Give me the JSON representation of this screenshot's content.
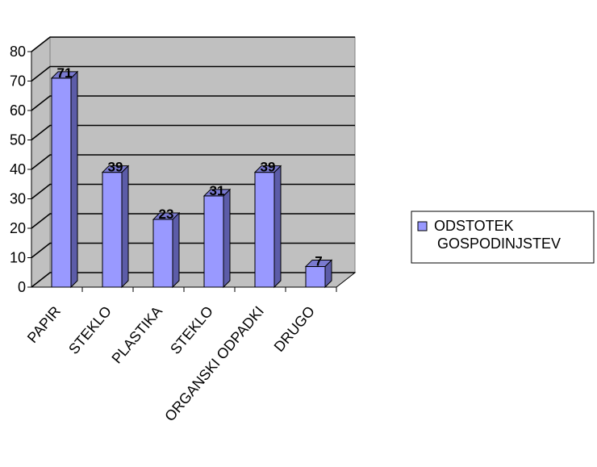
{
  "chart_data": {
    "type": "bar",
    "categories": [
      "PAPIR",
      "STEKLO",
      "PLASTIKA",
      "STEKLO",
      "ORGANSKI ODPADKI",
      "DRUGO"
    ],
    "series": [
      {
        "name": "ODSTOTEK GOSPODINJSTEV",
        "values": [
          71,
          39,
          23,
          31,
          39,
          7
        ],
        "color": "#9999ff"
      }
    ],
    "data_labels": [
      "71",
      "39",
      "23",
      "31",
      "39",
      "7"
    ],
    "ylim": [
      0,
      80
    ],
    "yticks": [
      0,
      10,
      20,
      30,
      40,
      50,
      60,
      70,
      80
    ],
    "ytick_labels": [
      "0",
      "10",
      "20",
      "30",
      "40",
      "50",
      "60",
      "70",
      "80"
    ],
    "grid": true,
    "style": "3d",
    "wall_color": "#c0c0c0",
    "legend": {
      "position": "right",
      "lines": [
        "ODSTOTEK",
        "GOSPODINJSTEV"
      ]
    }
  }
}
